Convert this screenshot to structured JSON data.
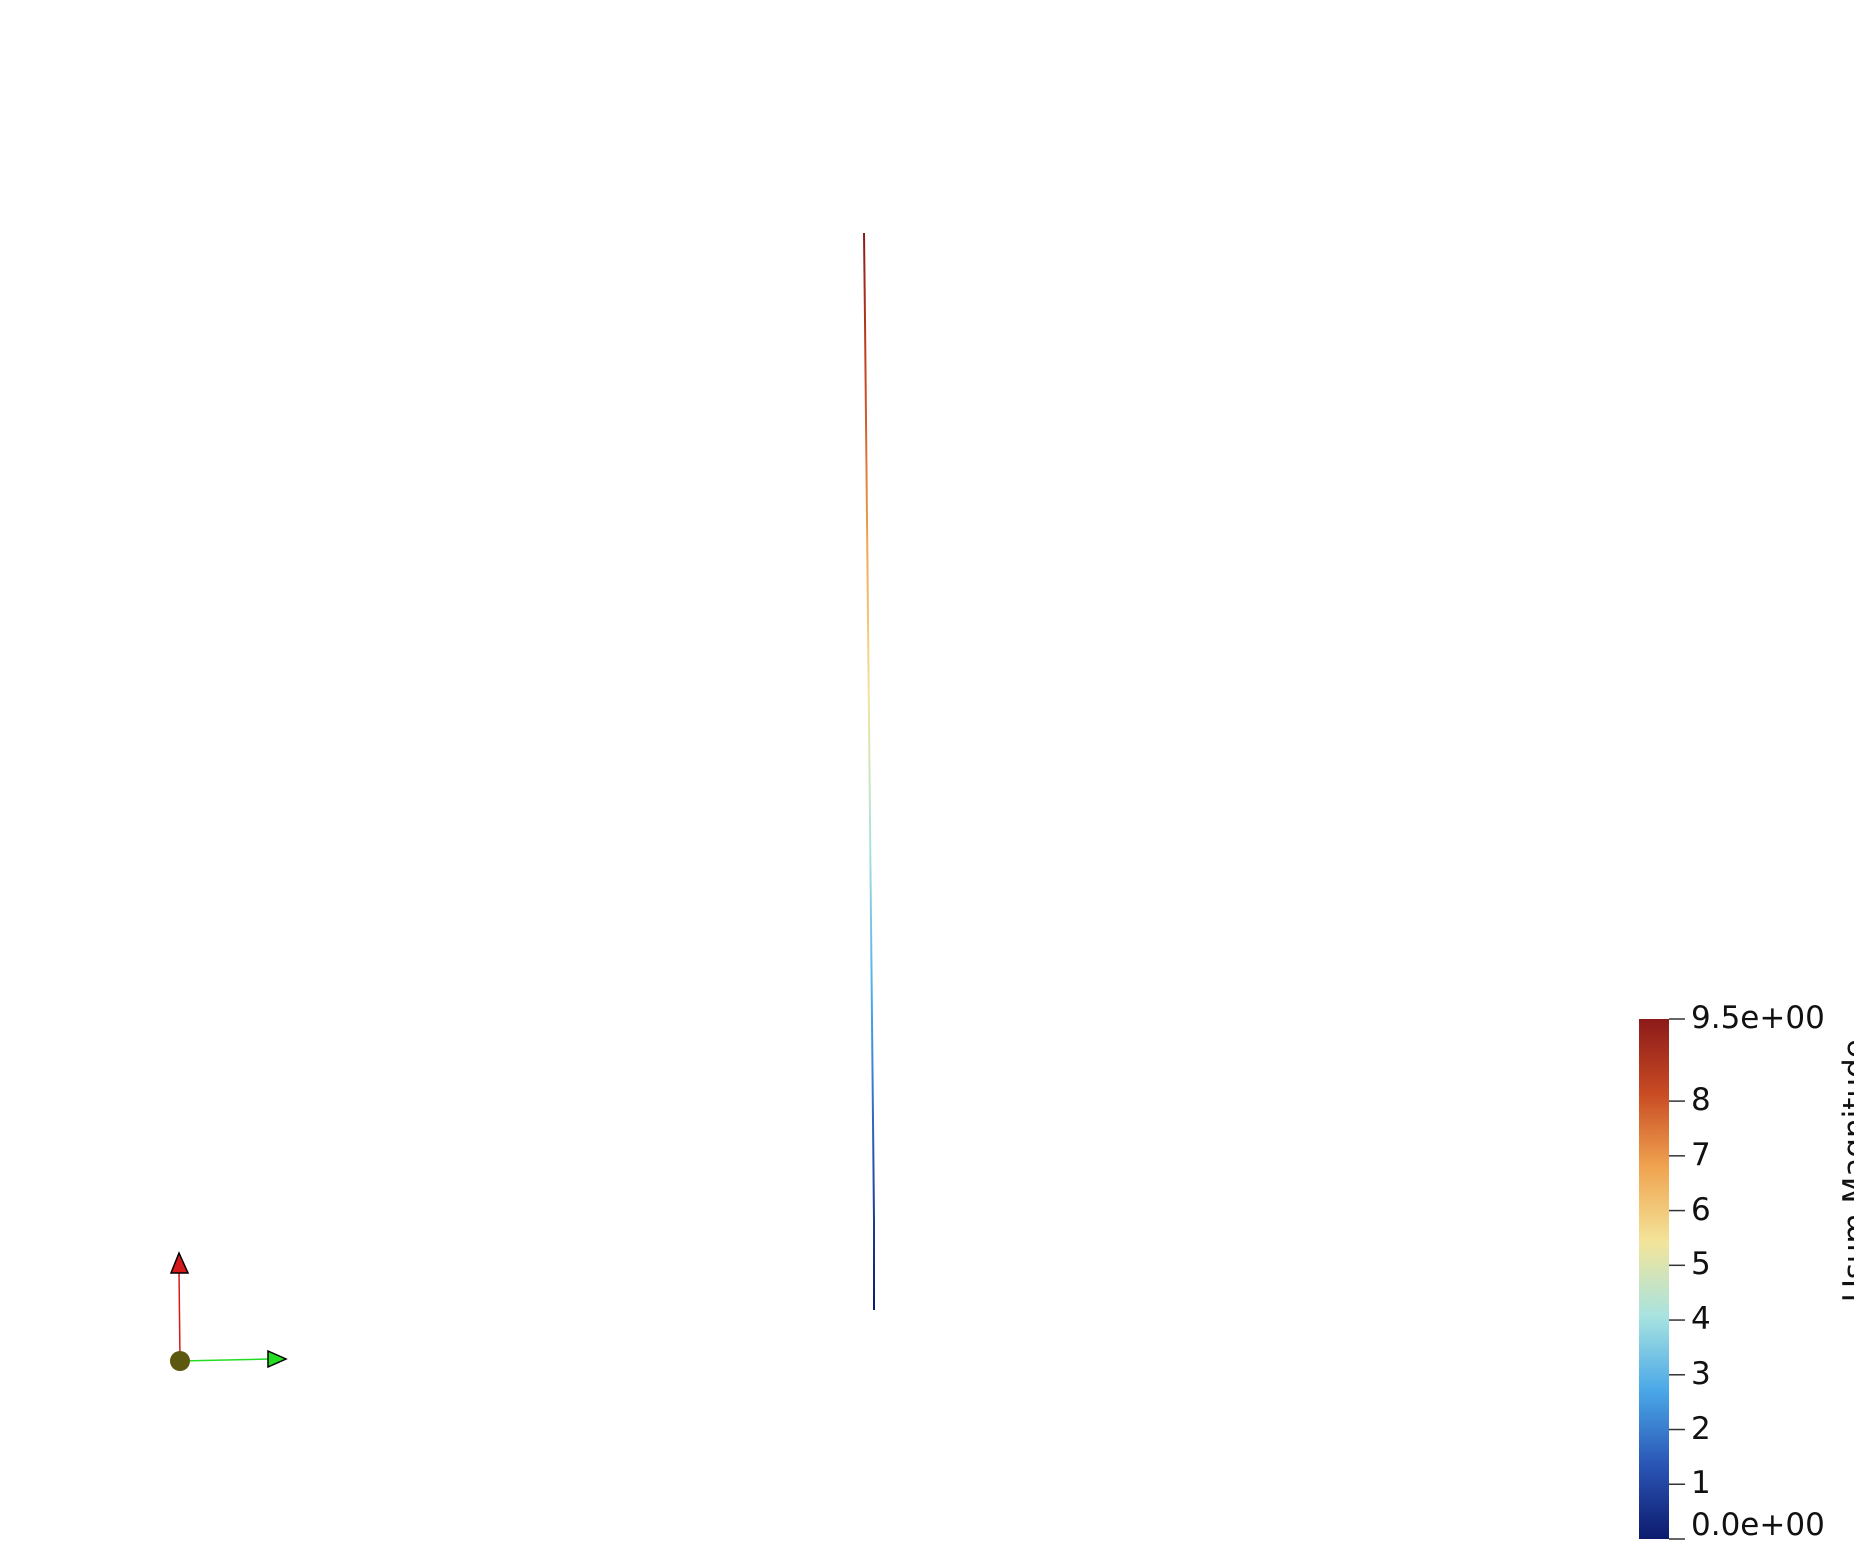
{
  "colorbar": {
    "title": "Usum Magnitude",
    "min": 0.0,
    "max": 9.5,
    "ticks": [
      {
        "value": 9.5,
        "label": "9.5e+00"
      },
      {
        "value": 8,
        "label": "8"
      },
      {
        "value": 7,
        "label": "7"
      },
      {
        "value": 6,
        "label": "6"
      },
      {
        "value": 5,
        "label": "5"
      },
      {
        "value": 4,
        "label": "4"
      },
      {
        "value": 3,
        "label": "3"
      },
      {
        "value": 2,
        "label": "2"
      },
      {
        "value": 1,
        "label": "1"
      },
      {
        "value": 0.0,
        "label": "0.0e+00"
      }
    ],
    "colormap": [
      "#0d1b6e",
      "#2a55b5",
      "#4aa8e8",
      "#a8e3e0",
      "#f3e49a",
      "#f0a450",
      "#c84b23",
      "#8c1a1a"
    ]
  },
  "orientation_axes": {
    "vertical_axis_color": "#d41a1a",
    "horizontal_axis_color": "#22dd22",
    "origin_color": "#5c5810"
  },
  "line_plot": {
    "colors_top_to_bottom": [
      "#8c1a1a",
      "#c84b23",
      "#f0a450",
      "#f3e49a",
      "#a8e3e0",
      "#4aa8e8",
      "#2a55b5",
      "#0d1b6e"
    ]
  }
}
